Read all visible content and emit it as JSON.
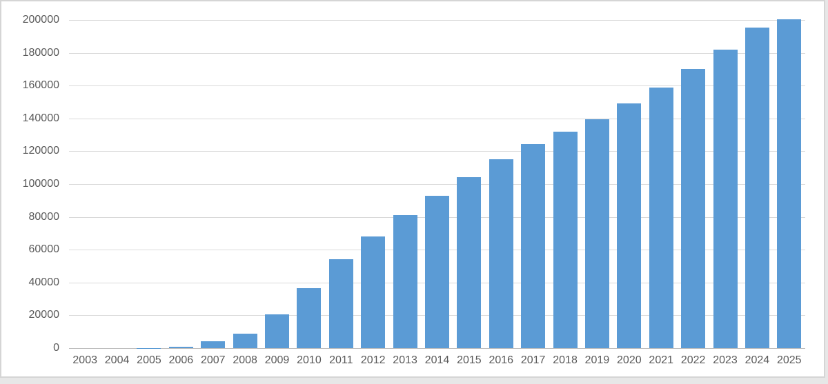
{
  "chart_data": {
    "type": "bar",
    "title": "",
    "xlabel": "",
    "ylabel": "",
    "categories": [
      "2003",
      "2004",
      "2005",
      "2006",
      "2007",
      "2008",
      "2009",
      "2010",
      "2011",
      "2012",
      "2013",
      "2014",
      "2015",
      "2016",
      "2017",
      "2018",
      "2019",
      "2020",
      "2021",
      "2022",
      "2023",
      "2024",
      "2025"
    ],
    "values": [
      0,
      0,
      200,
      1000,
      4000,
      9000,
      20500,
      36500,
      54000,
      68000,
      81000,
      93000,
      104000,
      115000,
      124500,
      132000,
      139500,
      149000,
      159000,
      170000,
      182000,
      195500,
      200500
    ],
    "ylim": [
      0,
      200000
    ],
    "yticks": [
      0,
      20000,
      40000,
      60000,
      80000,
      100000,
      120000,
      140000,
      160000,
      180000,
      200000
    ],
    "grid": true,
    "legend": false,
    "colors": {
      "bar": "#5B9BD5",
      "gridline": "#D9D9D9",
      "axis_line": "#BFBFBF",
      "tick_label": "#595959",
      "frame_border": "#D5D5D5",
      "page_background": "#E7E7E7",
      "plot_background": "#FFFFFF"
    }
  }
}
